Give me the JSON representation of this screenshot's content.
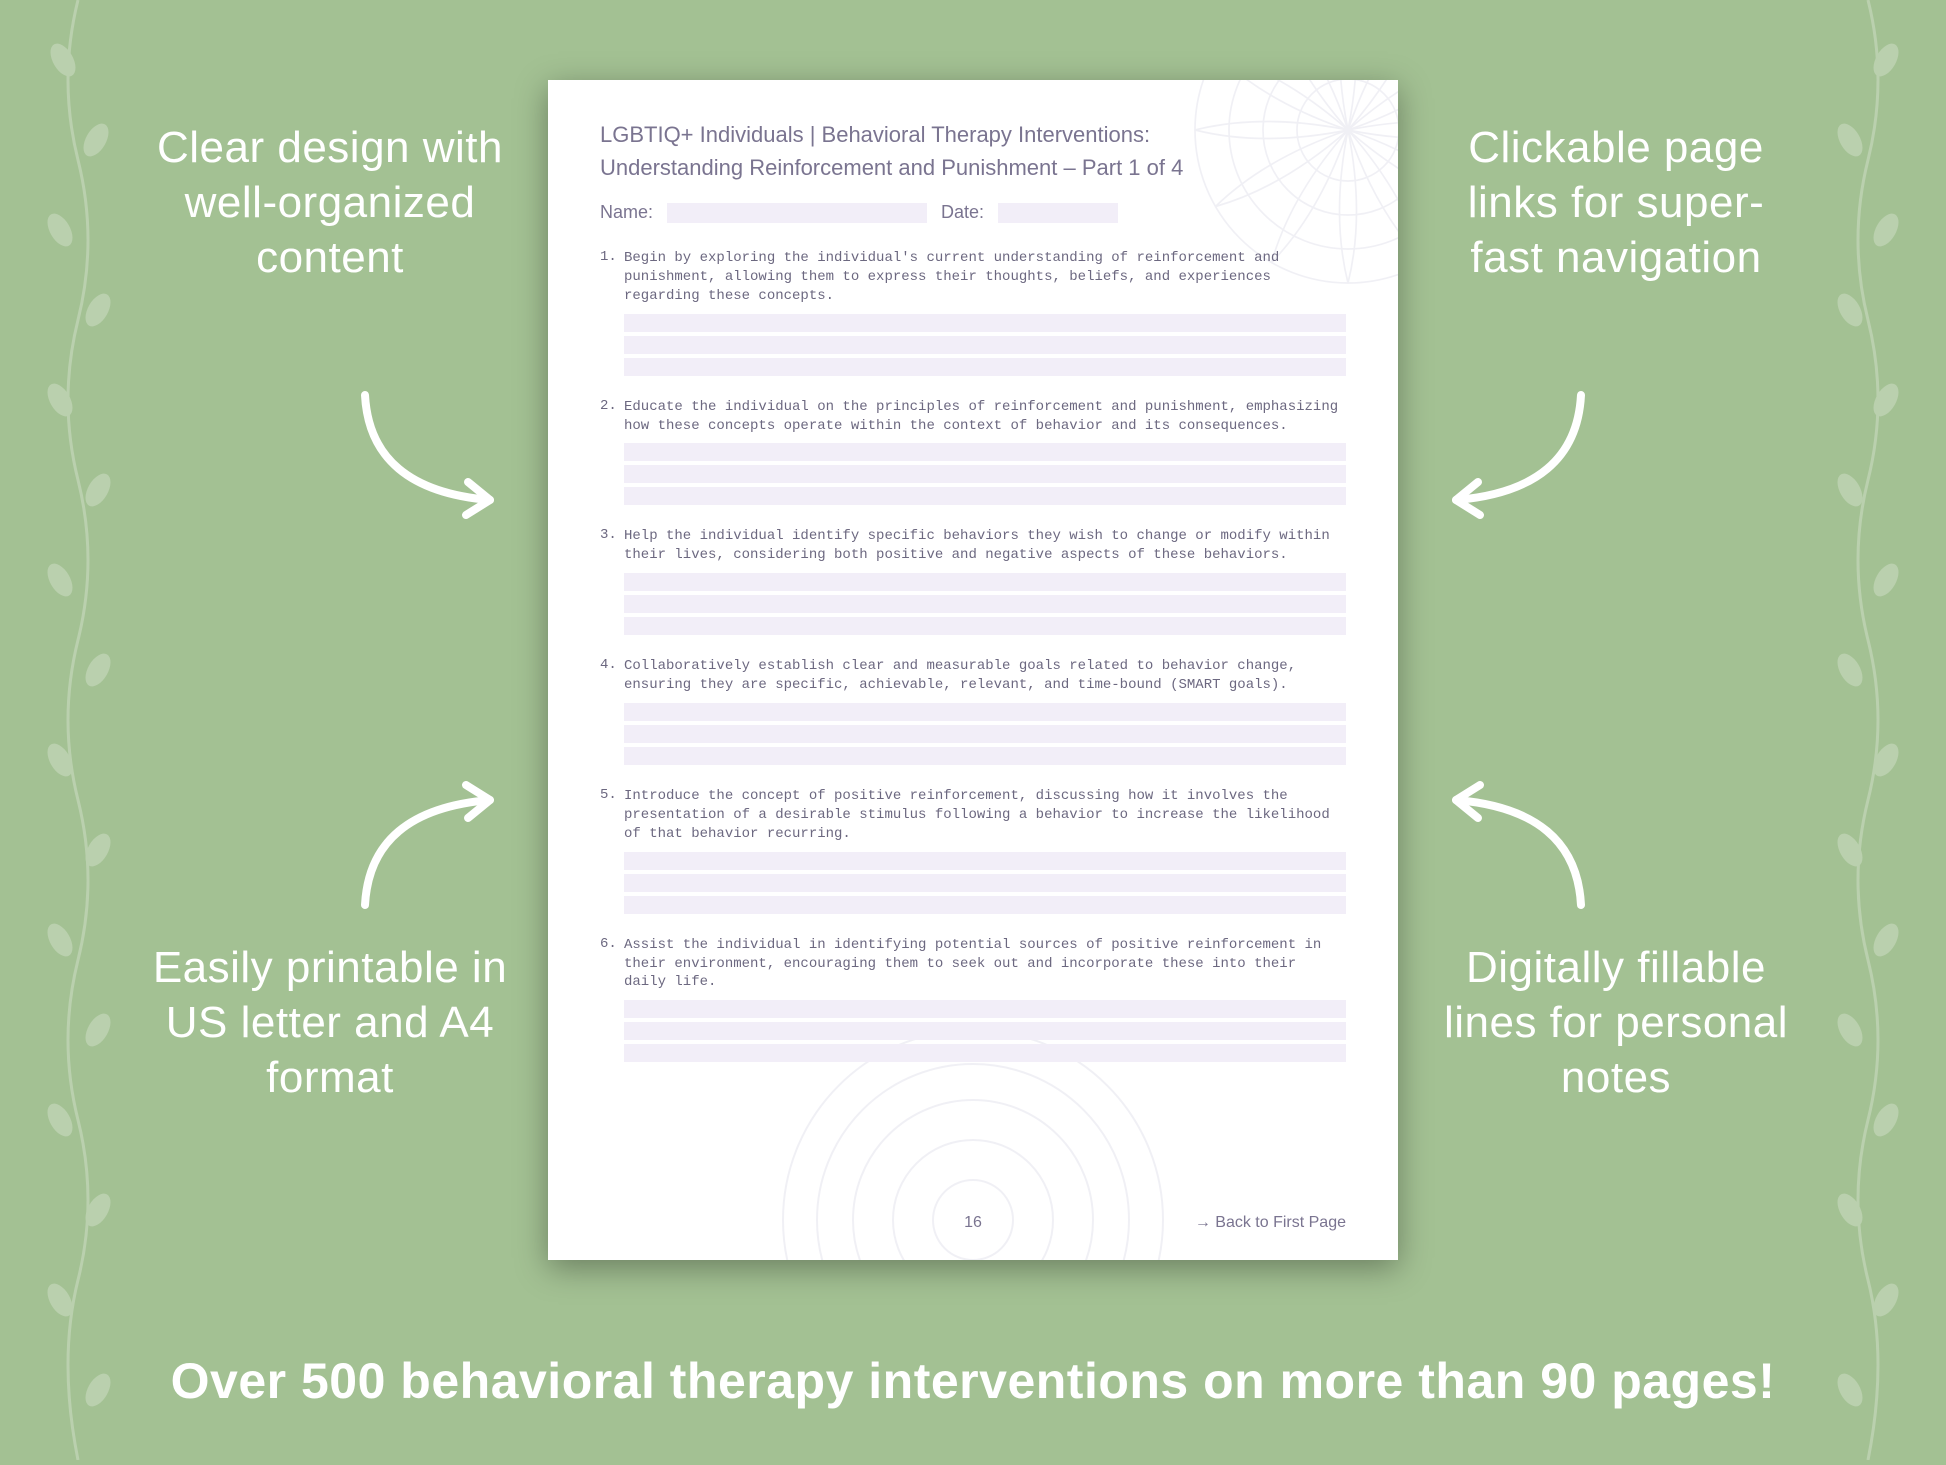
{
  "background_color": "#a3c193",
  "decor_color": "#ffffff",
  "callouts": {
    "top_left": "Clear design with well-organized content",
    "top_right": "Clickable page links for super-fast navigation",
    "bottom_left": "Easily printable in US letter and A4 format",
    "bottom_right": "Digitally fillable lines for personal notes"
  },
  "banner": "Over 500 behavioral therapy interventions on more than 90 pages!",
  "document": {
    "page_bg": "#ffffff",
    "text_color": "#7a7490",
    "mono_color": "#6c6880",
    "fill_line_color": "#f2eef8",
    "title_line1": "LGBTIQ+ Individuals | Behavioral Therapy Interventions:",
    "title_line2": "Understanding Reinforcement and Punishment – Part 1 of 4",
    "meta": {
      "name_label": "Name:",
      "date_label": "Date:"
    },
    "items": [
      {
        "n": "1.",
        "text": "Begin by exploring the individual's current understanding of reinforcement and punishment, allowing them to express their thoughts, beliefs, and experiences regarding these concepts."
      },
      {
        "n": "2.",
        "text": "Educate the individual on the principles of reinforcement and punishment, emphasizing how these concepts operate within the context of behavior and its consequences."
      },
      {
        "n": "3.",
        "text": "Help the individual identify specific behaviors they wish to change or modify within their lives, considering both positive and negative aspects of these behaviors."
      },
      {
        "n": "4.",
        "text": "Collaboratively establish clear and measurable goals related to behavior change, ensuring they are specific, achievable, relevant, and time-bound (SMART goals)."
      },
      {
        "n": "5.",
        "text": "Introduce the concept of positive reinforcement, discussing how it involves the presentation of a desirable stimulus following a behavior to increase the likelihood of that behavior recurring."
      },
      {
        "n": "6.",
        "text": "Assist the individual in identifying potential sources of positive reinforcement in their environment, encouraging them to seek out and incorporate these into their daily life."
      }
    ],
    "fill_lines_per_item": 3,
    "page_number": "16",
    "back_link": "→ Back to First Page"
  }
}
